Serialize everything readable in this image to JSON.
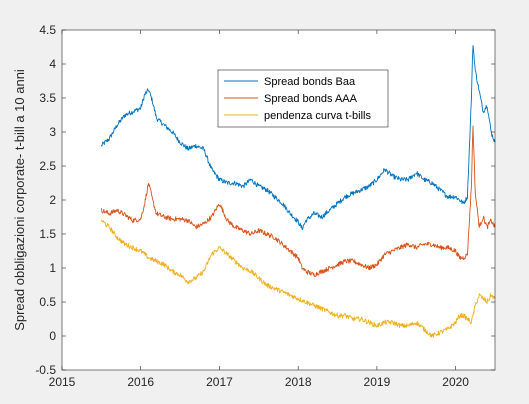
{
  "chart_data": {
    "type": "line",
    "title": "",
    "xlabel": "",
    "ylabel": "Spread obbligazioni corporate- t-bill a 10 anni",
    "xlim": [
      2015,
      2020.5
    ],
    "ylim": [
      -0.5,
      4.5
    ],
    "xticks": [
      2015,
      2016,
      2017,
      2018,
      2019,
      2020
    ],
    "yticks": [
      -0.5,
      0,
      0.5,
      1,
      1.5,
      2,
      2.5,
      3,
      3.5,
      4,
      4.5
    ],
    "ytick_labels": [
      "-0.5",
      "0",
      "0.5",
      "1",
      "1.5",
      "2",
      "2.5",
      "3",
      "3.5",
      "4",
      "4.5"
    ],
    "grid": false,
    "legend_position": "top-center",
    "series": [
      {
        "name": "Spread bonds Baa",
        "color": "#0072bd",
        "x": [
          2015.5,
          2015.6,
          2015.7,
          2015.8,
          2015.9,
          2016.0,
          2016.05,
          2016.1,
          2016.15,
          2016.2,
          2016.3,
          2016.4,
          2016.5,
          2016.6,
          2016.7,
          2016.8,
          2016.9,
          2017.0,
          2017.1,
          2017.2,
          2017.3,
          2017.4,
          2017.5,
          2017.6,
          2017.7,
          2017.8,
          2017.9,
          2018.0,
          2018.05,
          2018.1,
          2018.2,
          2018.3,
          2018.4,
          2018.5,
          2018.6,
          2018.7,
          2018.8,
          2018.9,
          2019.0,
          2019.1,
          2019.2,
          2019.3,
          2019.4,
          2019.5,
          2019.6,
          2019.7,
          2019.8,
          2019.9,
          2020.0,
          2020.05,
          2020.1,
          2020.15,
          2020.2,
          2020.22,
          2020.25,
          2020.3,
          2020.35,
          2020.4,
          2020.45,
          2020.5
        ],
        "values": [
          2.8,
          2.9,
          3.1,
          3.25,
          3.3,
          3.35,
          3.55,
          3.62,
          3.45,
          3.2,
          3.1,
          3.0,
          2.85,
          2.75,
          2.8,
          2.75,
          2.45,
          2.3,
          2.25,
          2.25,
          2.2,
          2.3,
          2.2,
          2.15,
          2.05,
          1.95,
          1.8,
          1.68,
          1.58,
          1.7,
          1.8,
          1.75,
          1.85,
          1.95,
          2.05,
          2.1,
          2.15,
          2.2,
          2.3,
          2.45,
          2.35,
          2.3,
          2.3,
          2.4,
          2.3,
          2.25,
          2.15,
          2.05,
          2.05,
          2.0,
          1.95,
          2.05,
          3.5,
          4.3,
          3.9,
          3.6,
          3.3,
          3.4,
          3.0,
          2.85
        ]
      },
      {
        "name": "Spread bonds AAA",
        "color": "#d95319",
        "x": [
          2015.5,
          2015.6,
          2015.7,
          2015.8,
          2015.9,
          2016.0,
          2016.05,
          2016.1,
          2016.15,
          2016.2,
          2016.3,
          2016.4,
          2016.5,
          2016.6,
          2016.7,
          2016.8,
          2016.9,
          2017.0,
          2017.1,
          2017.2,
          2017.3,
          2017.4,
          2017.5,
          2017.6,
          2017.7,
          2017.8,
          2017.9,
          2018.0,
          2018.05,
          2018.1,
          2018.2,
          2018.3,
          2018.4,
          2018.5,
          2018.6,
          2018.7,
          2018.8,
          2018.9,
          2019.0,
          2019.1,
          2019.2,
          2019.3,
          2019.4,
          2019.5,
          2019.6,
          2019.7,
          2019.8,
          2019.9,
          2020.0,
          2020.05,
          2020.1,
          2020.15,
          2020.2,
          2020.22,
          2020.25,
          2020.3,
          2020.35,
          2020.4,
          2020.45,
          2020.5
        ],
        "values": [
          1.85,
          1.8,
          1.85,
          1.78,
          1.7,
          1.72,
          1.95,
          2.25,
          2.0,
          1.8,
          1.75,
          1.72,
          1.72,
          1.7,
          1.6,
          1.65,
          1.75,
          1.95,
          1.7,
          1.6,
          1.55,
          1.5,
          1.55,
          1.5,
          1.45,
          1.35,
          1.25,
          1.15,
          1.0,
          0.95,
          0.9,
          0.95,
          1.0,
          1.05,
          1.1,
          1.1,
          1.05,
          1.0,
          1.05,
          1.2,
          1.25,
          1.3,
          1.35,
          1.3,
          1.35,
          1.35,
          1.3,
          1.3,
          1.25,
          1.15,
          1.15,
          1.2,
          2.2,
          3.1,
          2.1,
          1.6,
          1.75,
          1.6,
          1.7,
          1.6
        ]
      },
      {
        "name": "pendenza curva t-bills",
        "color": "#edb120",
        "x": [
          2015.5,
          2015.6,
          2015.7,
          2015.8,
          2015.9,
          2016.0,
          2016.1,
          2016.2,
          2016.3,
          2016.4,
          2016.5,
          2016.6,
          2016.7,
          2016.8,
          2016.9,
          2017.0,
          2017.1,
          2017.2,
          2017.3,
          2017.4,
          2017.5,
          2017.6,
          2017.7,
          2017.8,
          2017.9,
          2018.0,
          2018.1,
          2018.2,
          2018.3,
          2018.4,
          2018.5,
          2018.6,
          2018.7,
          2018.8,
          2018.9,
          2019.0,
          2019.1,
          2019.2,
          2019.3,
          2019.4,
          2019.5,
          2019.6,
          2019.7,
          2019.8,
          2019.9,
          2020.0,
          2020.05,
          2020.1,
          2020.15,
          2020.2,
          2020.25,
          2020.3,
          2020.35,
          2020.4,
          2020.45,
          2020.5
        ],
        "values": [
          1.7,
          1.6,
          1.45,
          1.35,
          1.3,
          1.25,
          1.15,
          1.1,
          1.05,
          0.95,
          0.9,
          0.8,
          0.85,
          0.95,
          1.2,
          1.3,
          1.2,
          1.1,
          1.0,
          0.95,
          0.85,
          0.75,
          0.7,
          0.65,
          0.6,
          0.55,
          0.5,
          0.45,
          0.4,
          0.35,
          0.3,
          0.3,
          0.25,
          0.25,
          0.2,
          0.15,
          0.2,
          0.2,
          0.15,
          0.15,
          0.2,
          0.1,
          0.0,
          0.05,
          0.1,
          0.2,
          0.3,
          0.3,
          0.25,
          0.2,
          0.45,
          0.6,
          0.55,
          0.5,
          0.6,
          0.55
        ]
      }
    ]
  }
}
